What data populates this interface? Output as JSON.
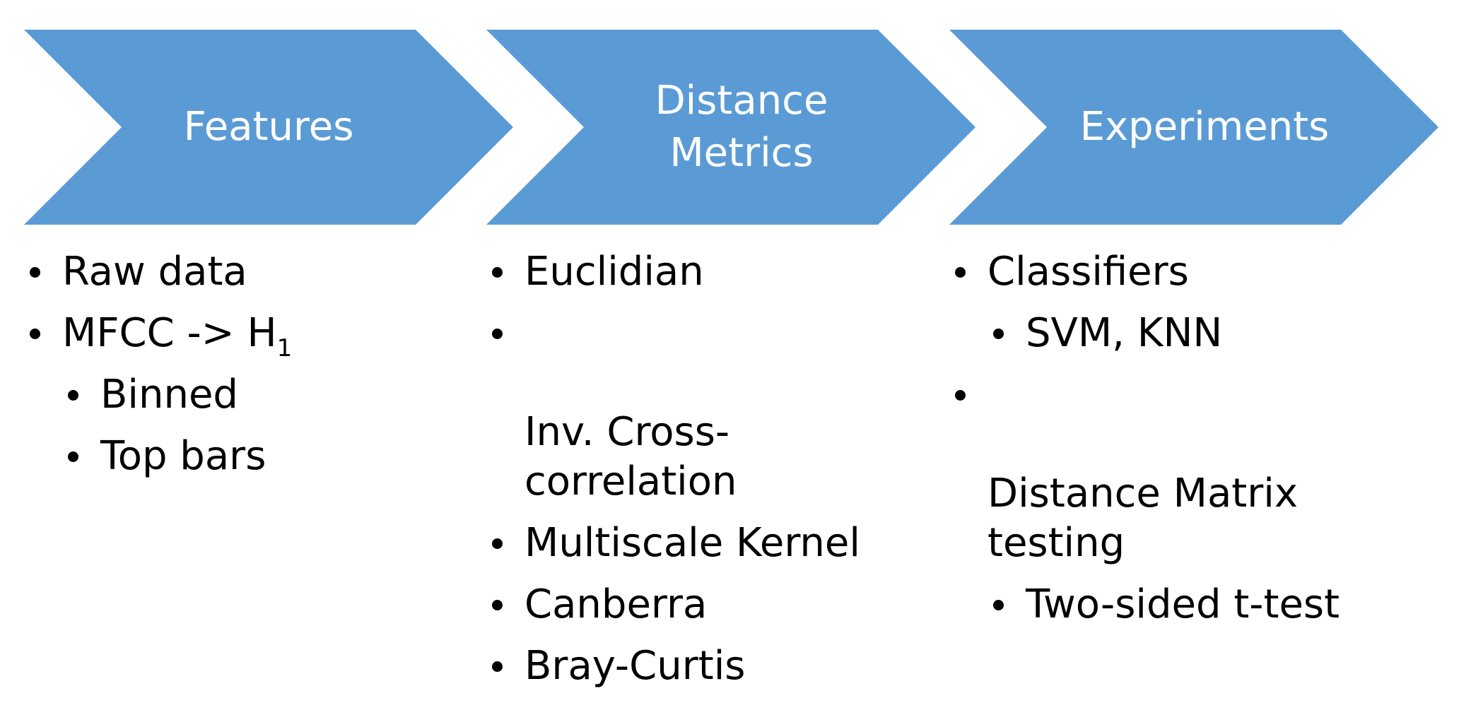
{
  "stages": [
    {
      "label": "Features",
      "bullets": [
        {
          "level": 0,
          "text": "Raw data"
        },
        {
          "level": 0,
          "text": "MFCC -> H",
          "sub": "1"
        },
        {
          "level": 1,
          "text": "Binned"
        },
        {
          "level": 1,
          "text": "Top bars"
        }
      ]
    },
    {
      "label": "Distance\nMetrics",
      "bullets": [
        {
          "level": 0,
          "text": "Euclidian"
        },
        {
          "level": 0,
          "text": "Inv. Cross-\ncorrelation"
        },
        {
          "level": 0,
          "text": "Multiscale Kernel"
        },
        {
          "level": 0,
          "text": "Canberra"
        },
        {
          "level": 0,
          "text": "Bray-Curtis"
        }
      ]
    },
    {
      "label": "Experiments",
      "bullets": [
        {
          "level": 0,
          "text": "Classifiers"
        },
        {
          "level": 1,
          "text": "SVM, KNN"
        },
        {
          "level": 0,
          "text": "Distance Matrix\ntesting"
        },
        {
          "level": 1,
          "text": "Two-sided t-test"
        }
      ]
    }
  ],
  "colors": {
    "chevron_fill": "#5B9BD5",
    "chevron_text": "#FFFFFF",
    "bullet_text": "#000000"
  }
}
